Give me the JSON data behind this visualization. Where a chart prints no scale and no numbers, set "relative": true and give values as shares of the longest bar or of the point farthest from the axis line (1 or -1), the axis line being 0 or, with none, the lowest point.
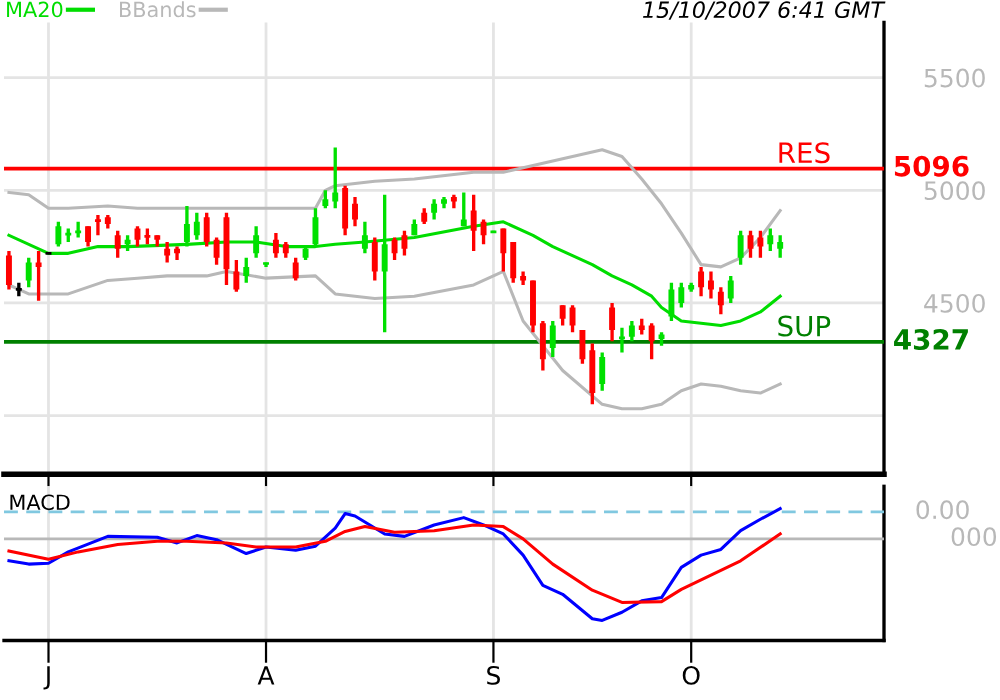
{
  "chart_data": [
    {
      "type": "candlestick",
      "legend": "top left",
      "grid": true,
      "tick_labels": "y",
      "categories": [
        null,
        null,
        null,
        null,
        null,
        null,
        null,
        null,
        null,
        null,
        null,
        null,
        null,
        null,
        null,
        null,
        null,
        null,
        null,
        null,
        null,
        null,
        null,
        null,
        null,
        null,
        null,
        null,
        null,
        null,
        null,
        null,
        null,
        null,
        null,
        null,
        null,
        null,
        null,
        null,
        null,
        null,
        null,
        null,
        null,
        null,
        null,
        null,
        null,
        null,
        null,
        null,
        null,
        null,
        null,
        null,
        null,
        null,
        null,
        null,
        null,
        null,
        null,
        null,
        null,
        null,
        null,
        null,
        null,
        null,
        null,
        null,
        null,
        null,
        null,
        null,
        null,
        null,
        null,
        null,
        null,
        null,
        null,
        null,
        null,
        null,
        null,
        null,
        null
      ],
      "ohlc": [
        [
          4710,
          4730,
          4560,
          4580
        ],
        [
          4560,
          4590,
          4530,
          4560
        ],
        [
          4600,
          4700,
          4570,
          4680
        ],
        [
          4680,
          4730,
          4510,
          4660
        ],
        [
          4720,
          4720,
          4720,
          4720
        ],
        [
          4760,
          4860,
          4750,
          4840
        ],
        [
          4800,
          4830,
          4770,
          4810
        ],
        [
          4810,
          4860,
          4790,
          4820
        ],
        [
          4840,
          4840,
          4750,
          4770
        ],
        [
          4870,
          4890,
          4800,
          4860
        ],
        [
          4880,
          4890,
          4830,
          4850
        ],
        [
          4800,
          4820,
          4700,
          4740
        ],
        [
          4760,
          4800,
          4730,
          4780
        ],
        [
          4830,
          4840,
          4750,
          4780
        ],
        [
          4800,
          4830,
          4760,
          4790
        ],
        [
          4800,
          4800,
          4750,
          4780
        ],
        [
          4740,
          4770,
          4680,
          4710
        ],
        [
          4740,
          4750,
          4690,
          4720
        ],
        [
          4770,
          4930,
          4750,
          4850
        ],
        [
          4800,
          4900,
          4780,
          4860
        ],
        [
          4880,
          4900,
          4750,
          4770
        ],
        [
          4780,
          4790,
          4670,
          4700
        ],
        [
          4880,
          4900,
          4580,
          4650
        ],
        [
          4640,
          4690,
          4550,
          4560
        ],
        [
          4620,
          4700,
          4590,
          4660
        ],
        [
          4720,
          4840,
          4700,
          4800
        ],
        [
          4670,
          4680,
          4660,
          4680
        ],
        [
          4780,
          4810,
          4700,
          4720
        ],
        [
          4760,
          4770,
          4700,
          4720
        ],
        [
          4680,
          4700,
          4600,
          4610
        ],
        [
          4700,
          4750,
          4690,
          4740
        ],
        [
          4760,
          4920,
          4750,
          4880
        ],
        [
          4930,
          5000,
          4920,
          4960
        ],
        [
          4950,
          5190,
          4920,
          4990
        ],
        [
          5010,
          5020,
          4800,
          4830
        ],
        [
          4940,
          4970,
          4840,
          4870
        ],
        [
          4740,
          4860,
          4720,
          4800
        ],
        [
          4770,
          4790,
          4600,
          4640
        ],
        [
          4640,
          4980,
          4370,
          4760
        ],
        [
          4780,
          4790,
          4690,
          4720
        ],
        [
          4800,
          4820,
          4710,
          4740
        ],
        [
          4800,
          4870,
          4800,
          4850
        ],
        [
          4900,
          4920,
          4850,
          4860
        ],
        [
          4900,
          4960,
          4870,
          4940
        ],
        [
          4940,
          4970,
          4920,
          4960
        ],
        [
          4970,
          4980,
          4920,
          4950
        ],
        [
          4840,
          4990,
          4840,
          4870
        ],
        [
          4910,
          4980,
          4730,
          4820
        ],
        [
          4860,
          4870,
          4760,
          4800
        ],
        [
          4810,
          4820,
          4810,
          4820
        ],
        [
          4830,
          4830,
          4640,
          4720
        ],
        [
          4770,
          4770,
          4590,
          4610
        ],
        [
          4620,
          4640,
          4580,
          4600
        ],
        [
          4600,
          4600,
          4370,
          4400
        ],
        [
          4410,
          4420,
          4200,
          4250
        ],
        [
          4300,
          4420,
          4260,
          4400
        ],
        [
          4490,
          4490,
          4400,
          4430
        ],
        [
          4480,
          4490,
          4370,
          4400
        ],
        [
          4380,
          4380,
          4230,
          4250
        ],
        [
          4290,
          4320,
          4050,
          4100
        ],
        [
          4140,
          4280,
          4110,
          4260
        ],
        [
          4480,
          4500,
          4330,
          4380
        ],
        [
          4350,
          4390,
          4280,
          4340
        ],
        [
          4350,
          4420,
          4330,
          4400
        ],
        [
          4400,
          4430,
          4360,
          4380
        ],
        [
          4400,
          4410,
          4250,
          4330
        ],
        [
          4340,
          4370,
          4310,
          4360
        ],
        [
          4440,
          4590,
          4420,
          4560
        ],
        [
          4500,
          4590,
          4480,
          4570
        ],
        [
          4560,
          4590,
          4550,
          4580
        ],
        [
          4640,
          4660,
          4530,
          4570
        ],
        [
          4600,
          4640,
          4520,
          4560
        ],
        [
          4550,
          4570,
          4450,
          4490
        ],
        [
          4520,
          4620,
          4500,
          4600
        ],
        [
          4700,
          4820,
          4670,
          4800
        ],
        [
          4800,
          4820,
          4700,
          4740
        ],
        [
          4790,
          4820,
          4700,
          4750
        ],
        [
          4760,
          4830,
          4730,
          4800
        ],
        [
          4740,
          4800,
          4700,
          4770
        ],
        null,
        null,
        null,
        null,
        null,
        null,
        null,
        null,
        null,
        null
      ],
      "colors": [
        "#ff0000",
        "#000000",
        "#00e000",
        "#ff0000",
        "#000000",
        "#00e000",
        "#00e000",
        "#00e000",
        "#ff0000",
        "#ff0000",
        "#ff0000",
        "#ff0000",
        "#00e000",
        "#ff0000",
        "#ff0000",
        "#ff0000",
        "#ff0000",
        "#ff0000",
        "#00e000",
        "#00e000",
        "#ff0000",
        "#ff0000",
        "#ff0000",
        "#ff0000",
        "#00e000",
        "#00e000",
        "#00e000",
        "#ff0000",
        "#ff0000",
        "#ff0000",
        "#00e000",
        "#00e000",
        "#00e000",
        "#00e000",
        "#ff0000",
        "#ff0000",
        "#00e000",
        "#ff0000",
        "#00e000",
        "#ff0000",
        "#ff0000",
        "#00e000",
        "#ff0000",
        "#00e000",
        "#00e000",
        "#ff0000",
        "#00e000",
        "#ff0000",
        "#ff0000",
        "#00e000",
        "#ff0000",
        "#ff0000",
        "#ff0000",
        "#ff0000",
        "#ff0000",
        "#00e000",
        "#ff0000",
        "#ff0000",
        "#ff0000",
        "#ff0000",
        "#00e000",
        "#ff0000",
        "#00e000",
        "#00e000",
        "#ff0000",
        "#ff0000",
        "#00e000",
        "#00e000",
        "#00e000",
        "#00e000",
        "#ff0000",
        "#ff0000",
        "#ff0000",
        "#00e000",
        "#00e000",
        "#ff0000",
        "#ff0000",
        "#00e000",
        "#00e000",
        null,
        null,
        null,
        null,
        null,
        null,
        null,
        null,
        null,
        null
      ],
      "series": [
        {
          "name": "MA20",
          "type": "line",
          "color": "#00dd00",
          "values": [
            4800,
            null,
            null,
            null,
            4720,
            null,
            4720,
            null,
            null,
            4750,
            null,
            null,
            4750,
            null,
            null,
            null,
            null,
            null,
            4760,
            null,
            null,
            null,
            4770,
            null,
            null,
            4770,
            null,
            null,
            4750,
            null,
            null,
            4750,
            null,
            4760,
            null,
            null,
            4770,
            null,
            null,
            null,
            null,
            4790,
            null,
            null,
            null,
            null,
            null,
            4840,
            null,
            null,
            4860,
            null,
            null,
            4800,
            null,
            4750,
            null,
            4710,
            null,
            4670,
            null,
            4620,
            null,
            4580,
            null,
            4530,
            4480,
            null,
            4420,
            null,
            4410,
            null,
            4400,
            null,
            4420,
            null,
            4460,
            null,
            4530,
            null,
            null,
            null,
            null,
            null,
            null,
            null,
            null,
            null,
            null
          ]
        },
        {
          "name": "BBands",
          "type": "line",
          "color": "#b8b8b8",
          "values": [
            4990,
            null,
            4980,
            null,
            4920,
            null,
            4920,
            null,
            null,
            null,
            4930,
            null,
            null,
            4920,
            null,
            null,
            4920,
            null,
            null,
            null,
            4920,
            null,
            4920,
            null,
            null,
            null,
            4920,
            null,
            null,
            null,
            null,
            4920,
            5000,
            5020,
            null,
            null,
            null,
            5040,
            null,
            null,
            null,
            5050,
            null,
            null,
            null,
            null,
            null,
            5080,
            null,
            null,
            5080,
            null,
            5100,
            null,
            null,
            null,
            5140,
            null,
            null,
            null,
            5180,
            null,
            5150,
            null,
            5050,
            null,
            4940,
            null,
            4810,
            null,
            4670,
            null,
            4660,
            null,
            4700,
            null,
            4790,
            null,
            4910,
            null,
            null,
            null,
            null,
            null,
            null,
            null,
            null,
            null,
            null
          ]
        },
        {
          "type": "line",
          "color": "#b8b8b8",
          "values": [
            4580,
            null,
            4540,
            null,
            4540,
            null,
            4540,
            null,
            null,
            null,
            4600,
            null,
            null,
            4610,
            null,
            null,
            4620,
            null,
            null,
            null,
            4620,
            null,
            4640,
            null,
            null,
            null,
            4610,
            null,
            null,
            null,
            null,
            4620,
            4580,
            4540,
            null,
            null,
            null,
            4520,
            null,
            null,
            null,
            4530,
            null,
            null,
            null,
            null,
            null,
            4580,
            null,
            null,
            4640,
            null,
            4420,
            null,
            null,
            null,
            4200,
            null,
            null,
            null,
            4050,
            null,
            4030,
            null,
            4030,
            null,
            4050,
            null,
            4110,
            null,
            4140,
            null,
            4130,
            null,
            4110,
            null,
            4100,
            null,
            4140,
            null,
            null,
            null,
            null,
            null,
            null,
            null,
            null,
            null,
            null
          ]
        }
      ],
      "ylim": [
        3740,
        5745
      ],
      "yticks": [
        {
          "value": 4000,
          "label": null
        },
        4500,
        5000,
        5500
      ],
      "ref_lines": [
        {
          "axis": "y",
          "value": 5096,
          "label": "RES",
          "color": "#ff0000"
        },
        {
          "axis": "y",
          "value": 4327,
          "label": "SUP",
          "color": "#008000"
        }
      ],
      "annotations": [
        "5096",
        "4327",
        "15/10/2007 6:41 GMT"
      ]
    },
    {
      "type": "line",
      "title": "MACD",
      "relative": true,
      "grid": "x",
      "tick_labels": "x",
      "categories": [
        null,
        null,
        null,
        null,
        "J",
        null,
        null,
        null,
        null,
        null,
        null,
        null,
        null,
        null,
        null,
        null,
        null,
        null,
        null,
        null,
        null,
        null,
        null,
        null,
        null,
        null,
        "A",
        null,
        null,
        null,
        null,
        null,
        null,
        null,
        null,
        null,
        null,
        null,
        null,
        null,
        null,
        null,
        null,
        null,
        null,
        null,
        null,
        null,
        null,
        "S",
        null,
        null,
        null,
        null,
        null,
        null,
        null,
        null,
        null,
        null,
        null,
        null,
        null,
        null,
        null,
        null,
        null,
        null,
        null,
        "O",
        null,
        null,
        null,
        null,
        null,
        null,
        null,
        null,
        null,
        null,
        null,
        null,
        null,
        null,
        null,
        null,
        null,
        null,
        null
      ],
      "series": [
        {
          "color": "#0000ff",
          "values": [
            -0.27,
            null,
            -0.31,
            null,
            -0.3,
            null,
            -0.16,
            null,
            null,
            null,
            0.03,
            null,
            null,
            null,
            null,
            0.02,
            null,
            -0.05,
            null,
            0.04,
            null,
            -0.01,
            null,
            null,
            -0.18,
            null,
            -0.1,
            null,
            null,
            -0.14,
            null,
            -0.09,
            null,
            0.13,
            0.31,
            0.28,
            null,
            null,
            0.06,
            null,
            0.03,
            null,
            null,
            0.17,
            null,
            null,
            0.26,
            null,
            0.17,
            null,
            0.06,
            null,
            -0.2,
            null,
            -0.57,
            null,
            -0.68,
            null,
            null,
            -0.98,
            -1,
            null,
            -0.9,
            null,
            -0.76,
            null,
            -0.72,
            null,
            -0.35,
            null,
            -0.2,
            null,
            -0.13,
            null,
            0.1,
            null,
            0.24,
            null,
            0.37,
            null,
            null,
            null,
            null,
            null,
            null,
            null,
            null,
            null,
            null
          ]
        },
        {
          "color": "#ff0000",
          "values": [
            -0.15,
            null,
            null,
            null,
            -0.25,
            null,
            null,
            -0.16,
            null,
            null,
            null,
            -0.07,
            null,
            null,
            null,
            -0.03,
            null,
            null,
            -0.03,
            null,
            null,
            null,
            -0.05,
            null,
            null,
            -0.1,
            null,
            null,
            null,
            -0.1,
            null,
            null,
            -0.03,
            null,
            0.09,
            null,
            0.15,
            null,
            null,
            0.08,
            null,
            null,
            null,
            0.1,
            null,
            null,
            null,
            0.17,
            null,
            null,
            0.15,
            null,
            0,
            null,
            null,
            -0.31,
            null,
            null,
            null,
            -0.63,
            null,
            null,
            -0.78,
            null,
            null,
            null,
            -0.77,
            null,
            -0.62,
            null,
            null,
            null,
            null,
            null,
            -0.27,
            null,
            null,
            null,
            0.06,
            null,
            null,
            null,
            null,
            null,
            null,
            null,
            null,
            null,
            null
          ]
        }
      ],
      "ref_lines": [
        {
          "axis": "y",
          "value": 0.33,
          "color": "#80c8e0",
          "line_style": "dashed"
        },
        {
          "axis": "y",
          "value": 0,
          "color": "#b8b8b8"
        }
      ],
      "annotations": [
        "0.00",
        "000"
      ]
    }
  ]
}
